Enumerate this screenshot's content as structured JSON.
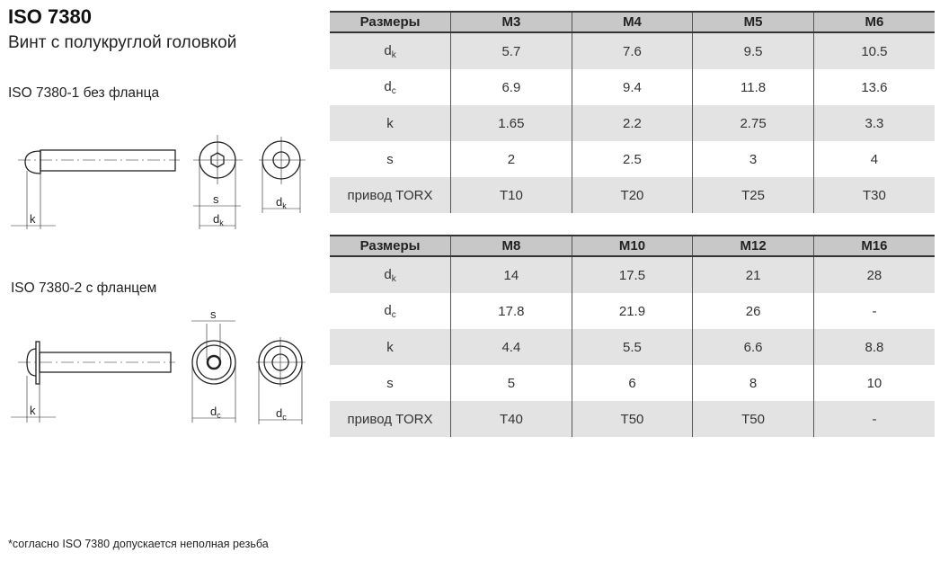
{
  "title": "ISO 7380",
  "subtitle": "Винт с полукруглой головкой",
  "variant1_caption": "ISO 7380-1 без фланца",
  "variant2_caption": "ISO 7380-2 с фланцем",
  "footnote": "*согласно ISO 7380 допускается неполная резьба",
  "drawing_labels": {
    "k": "k",
    "s": "s",
    "d": "d",
    "sub_k": "k",
    "sub_c": "c"
  },
  "tables": [
    {
      "headers": [
        "Размеры",
        "M3",
        "M4",
        "M5",
        "M6"
      ],
      "rows": [
        {
          "label": "d",
          "sub": "k",
          "values": [
            "5.7",
            "7.6",
            "9.5",
            "10.5"
          ]
        },
        {
          "label": "d",
          "sub": "c",
          "values": [
            "6.9",
            "9.4",
            "11.8",
            "13.6"
          ]
        },
        {
          "label": "k",
          "sub": "",
          "values": [
            "1.65",
            "2.2",
            "2.75",
            "3.3"
          ]
        },
        {
          "label": "s",
          "sub": "",
          "values": [
            "2",
            "2.5",
            "3",
            "4"
          ]
        },
        {
          "label": "привод TORX",
          "sub": "",
          "values": [
            "T10",
            "T20",
            "T25",
            "T30"
          ]
        }
      ]
    },
    {
      "headers": [
        "Размеры",
        "M8",
        "M10",
        "M12",
        "M16"
      ],
      "rows": [
        {
          "label": "d",
          "sub": "k",
          "values": [
            "14",
            "17.5",
            "21",
            "28"
          ]
        },
        {
          "label": "d",
          "sub": "c",
          "values": [
            "17.8",
            "21.9",
            "26",
            "-"
          ]
        },
        {
          "label": "k",
          "sub": "",
          "values": [
            "4.4",
            "5.5",
            "6.6",
            "8.8"
          ]
        },
        {
          "label": "s",
          "sub": "",
          "values": [
            "5",
            "6",
            "8",
            "10"
          ]
        },
        {
          "label": "привод TORX",
          "sub": "",
          "values": [
            "T40",
            "T50",
            "T50",
            "-"
          ]
        }
      ]
    }
  ]
}
